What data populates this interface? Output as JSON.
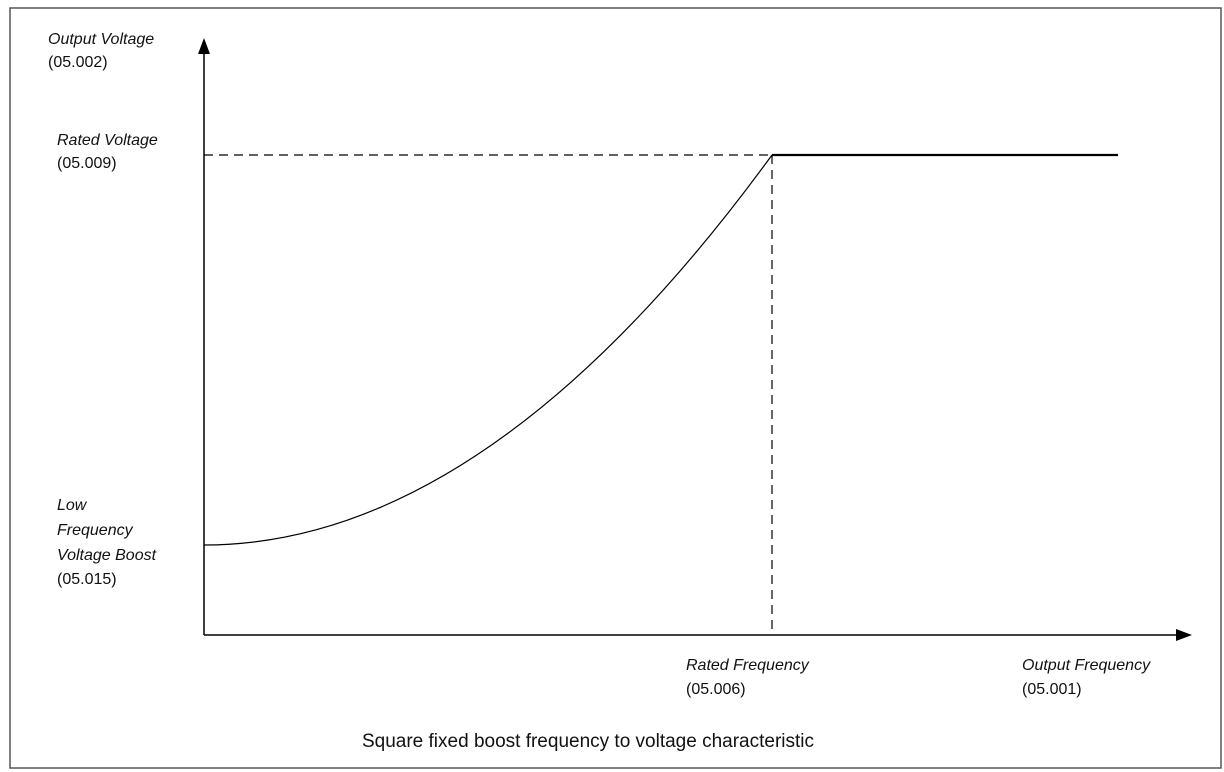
{
  "diagram": {
    "y_axis": {
      "label": "Output Voltage",
      "parameter": "(05.002)"
    },
    "rated_voltage": {
      "label": "Rated Voltage",
      "parameter": "(05.009)"
    },
    "boost": {
      "label_lines": [
        "Low",
        "Frequency",
        "Voltage Boost"
      ],
      "parameter": "(05.015)"
    },
    "rated_frequency": {
      "label": "Rated Frequency",
      "parameter": "(05.006)"
    },
    "x_axis": {
      "label": "Output Frequency",
      "parameter": "(05.001)"
    },
    "caption": "Square fixed boost frequency to voltage characteristic"
  }
}
